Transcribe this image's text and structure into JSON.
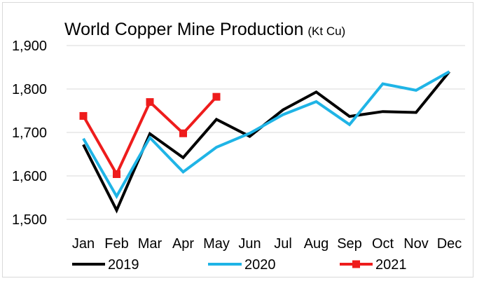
{
  "chart_data": {
    "type": "line",
    "title": "World Copper Mine Production",
    "unit": "(Kt Cu)",
    "categories": [
      "Jan",
      "Feb",
      "Mar",
      "Apr",
      "May",
      "Jun",
      "Jul",
      "Aug",
      "Sep",
      "Oct",
      "Nov",
      "Dec"
    ],
    "ylim": [
      1500,
      1900
    ],
    "yticks": [
      1500,
      1600,
      1700,
      1800,
      1900
    ],
    "ytick_labels": [
      "1,500",
      "1,600",
      "1,700",
      "1,800",
      "1,900"
    ],
    "grid": "horizontal",
    "legend_position": "bottom",
    "series": [
      {
        "name": "2019",
        "color": "#000000",
        "marker": "none",
        "values": [
          1672,
          1521,
          1697,
          1642,
          1730,
          1691,
          1752,
          1793,
          1737,
          1748,
          1746,
          1840
        ]
      },
      {
        "name": "2020",
        "color": "#1fb4e6",
        "marker": "none",
        "values": [
          1686,
          1553,
          1688,
          1609,
          1666,
          1698,
          1741,
          1771,
          1718,
          1812,
          1797,
          1840
        ]
      },
      {
        "name": "2021",
        "color": "#ee1c1c",
        "marker": "square",
        "values": [
          1738,
          1604,
          1770,
          1698,
          1782,
          null,
          null,
          null,
          null,
          null,
          null,
          null
        ]
      }
    ]
  }
}
